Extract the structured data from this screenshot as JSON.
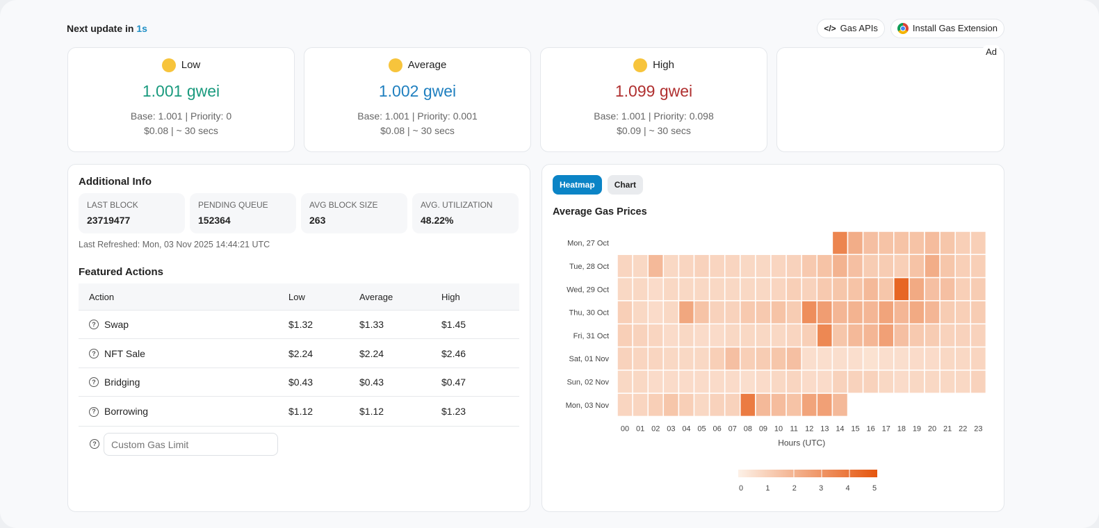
{
  "header": {
    "next_update_label": "Next update in",
    "next_update_value": "1s",
    "gas_apis": "Gas APIs",
    "install_extension": "Install Gas Extension",
    "ad_label": "Ad"
  },
  "gas_cards": [
    {
      "title": "Low",
      "value": "1.001 gwei",
      "detail": "Base: 1.001 | Priority: 0",
      "cost": "$0.08 | ~ 30 secs",
      "color": "#1a9a7e",
      "emoji": "grinning-face-icon"
    },
    {
      "title": "Average",
      "value": "1.002 gwei",
      "detail": "Base: 1.001 | Priority: 0.001",
      "cost": "$0.08 | ~ 30 secs",
      "color": "#1f7fbf",
      "emoji": "smiling-face-open-mouth-icon"
    },
    {
      "title": "High",
      "value": "1.099 gwei",
      "detail": "Base: 1.001 | Priority: 0.098",
      "cost": "$0.09 | ~ 30 secs",
      "color": "#b03030",
      "emoji": "slightly-smiling-face-icon"
    }
  ],
  "info": {
    "title": "Additional Info",
    "stats": [
      {
        "label": "LAST BLOCK",
        "value": "23719477"
      },
      {
        "label": "PENDING QUEUE",
        "value": "152364"
      },
      {
        "label": "AVG BLOCK SIZE",
        "value": "263"
      },
      {
        "label": "AVG. UTILIZATION",
        "value": "48.22%"
      }
    ],
    "last_refreshed": "Last Refreshed: Mon, 03 Nov 2025 14:44:21 UTC"
  },
  "actions": {
    "title": "Featured Actions",
    "columns": [
      "Action",
      "Low",
      "Average",
      "High"
    ],
    "rows": [
      {
        "name": "Swap",
        "low": "$1.32",
        "avg": "$1.33",
        "high": "$1.45"
      },
      {
        "name": "NFT Sale",
        "low": "$2.24",
        "avg": "$2.24",
        "high": "$2.46"
      },
      {
        "name": "Bridging",
        "low": "$0.43",
        "avg": "$0.43",
        "high": "$0.47"
      },
      {
        "name": "Borrowing",
        "low": "$1.12",
        "avg": "$1.12",
        "high": "$1.23"
      }
    ],
    "custom_placeholder": "Custom Gas Limit"
  },
  "chart_panel": {
    "tabs": [
      "Heatmap",
      "Chart"
    ],
    "active_tab": "Heatmap",
    "accent": "#0b84c6"
  },
  "chart_data": {
    "type": "heatmap",
    "title": "Average Gas Prices",
    "xlabel": "Hours (UTC)",
    "ylabel": "",
    "x": [
      "00",
      "01",
      "02",
      "03",
      "04",
      "05",
      "06",
      "07",
      "08",
      "09",
      "10",
      "11",
      "12",
      "13",
      "14",
      "15",
      "16",
      "17",
      "18",
      "19",
      "20",
      "21",
      "22",
      "23"
    ],
    "y": [
      "Mon, 27 Oct",
      "Tue, 28 Oct",
      "Wed, 29 Oct",
      "Thu, 30 Oct",
      "Fri, 31 Oct",
      "Sat, 01 Nov",
      "Sun, 02 Nov",
      "Mon, 03 Nov"
    ],
    "values": [
      [
        null,
        null,
        null,
        null,
        null,
        null,
        null,
        null,
        null,
        null,
        null,
        null,
        null,
        null,
        3.5,
        2.2,
        1.6,
        1.5,
        1.5,
        1.5,
        1.7,
        1.4,
        1.1,
        1.1
      ],
      [
        0.9,
        0.8,
        1.8,
        0.8,
        0.9,
        1.0,
        0.9,
        0.9,
        0.8,
        0.8,
        0.9,
        1.0,
        1.3,
        1.5,
        2.0,
        1.6,
        1.2,
        1.2,
        1.1,
        1.5,
        2.2,
        1.4,
        1.1,
        1.1
      ],
      [
        0.8,
        0.8,
        0.7,
        0.8,
        0.8,
        0.8,
        0.8,
        0.8,
        0.8,
        0.8,
        0.9,
        1.1,
        1.0,
        1.3,
        1.4,
        1.5,
        1.8,
        1.4,
        4.5,
        2.3,
        1.6,
        1.6,
        1.1,
        1.2
      ],
      [
        1.1,
        0.8,
        0.7,
        0.8,
        2.4,
        1.5,
        1.0,
        1.0,
        1.3,
        1.3,
        1.5,
        1.2,
        3.2,
        2.7,
        1.9,
        2.0,
        1.9,
        2.5,
        1.9,
        2.3,
        1.9,
        1.2,
        1.1,
        1.2
      ],
      [
        1.1,
        1.0,
        0.9,
        0.7,
        0.8,
        0.7,
        0.7,
        0.8,
        0.8,
        0.8,
        0.8,
        0.9,
        1.1,
        3.4,
        1.4,
        1.8,
        1.9,
        2.6,
        1.6,
        1.3,
        1.2,
        1.0,
        1.0,
        1.0
      ],
      [
        1.0,
        0.9,
        0.9,
        0.8,
        0.8,
        0.8,
        1.1,
        1.6,
        1.1,
        1.2,
        1.4,
        1.6,
        0.6,
        0.6,
        0.6,
        0.6,
        0.5,
        0.6,
        0.6,
        0.7,
        0.7,
        0.8,
        0.8,
        0.9
      ],
      [
        0.8,
        0.8,
        0.7,
        0.7,
        0.7,
        0.7,
        0.7,
        0.7,
        0.6,
        0.7,
        0.8,
        0.9,
        0.7,
        0.7,
        1.0,
        1.0,
        1.0,
        0.8,
        0.7,
        0.8,
        0.8,
        0.8,
        0.8,
        1.0
      ],
      [
        0.9,
        0.9,
        1.1,
        1.4,
        1.1,
        0.8,
        1.0,
        1.0,
        3.8,
        1.8,
        1.7,
        1.5,
        2.5,
        2.6,
        1.8,
        null,
        null,
        null,
        null,
        null,
        null,
        null,
        null,
        null
      ]
    ],
    "color_range": [
      0,
      5
    ],
    "colors": [
      "#fdf1e7",
      "#e5560e"
    ],
    "legend_ticks": [
      "0",
      "1",
      "2",
      "3",
      "4",
      "5"
    ],
    "legend_placement": "bottom"
  }
}
